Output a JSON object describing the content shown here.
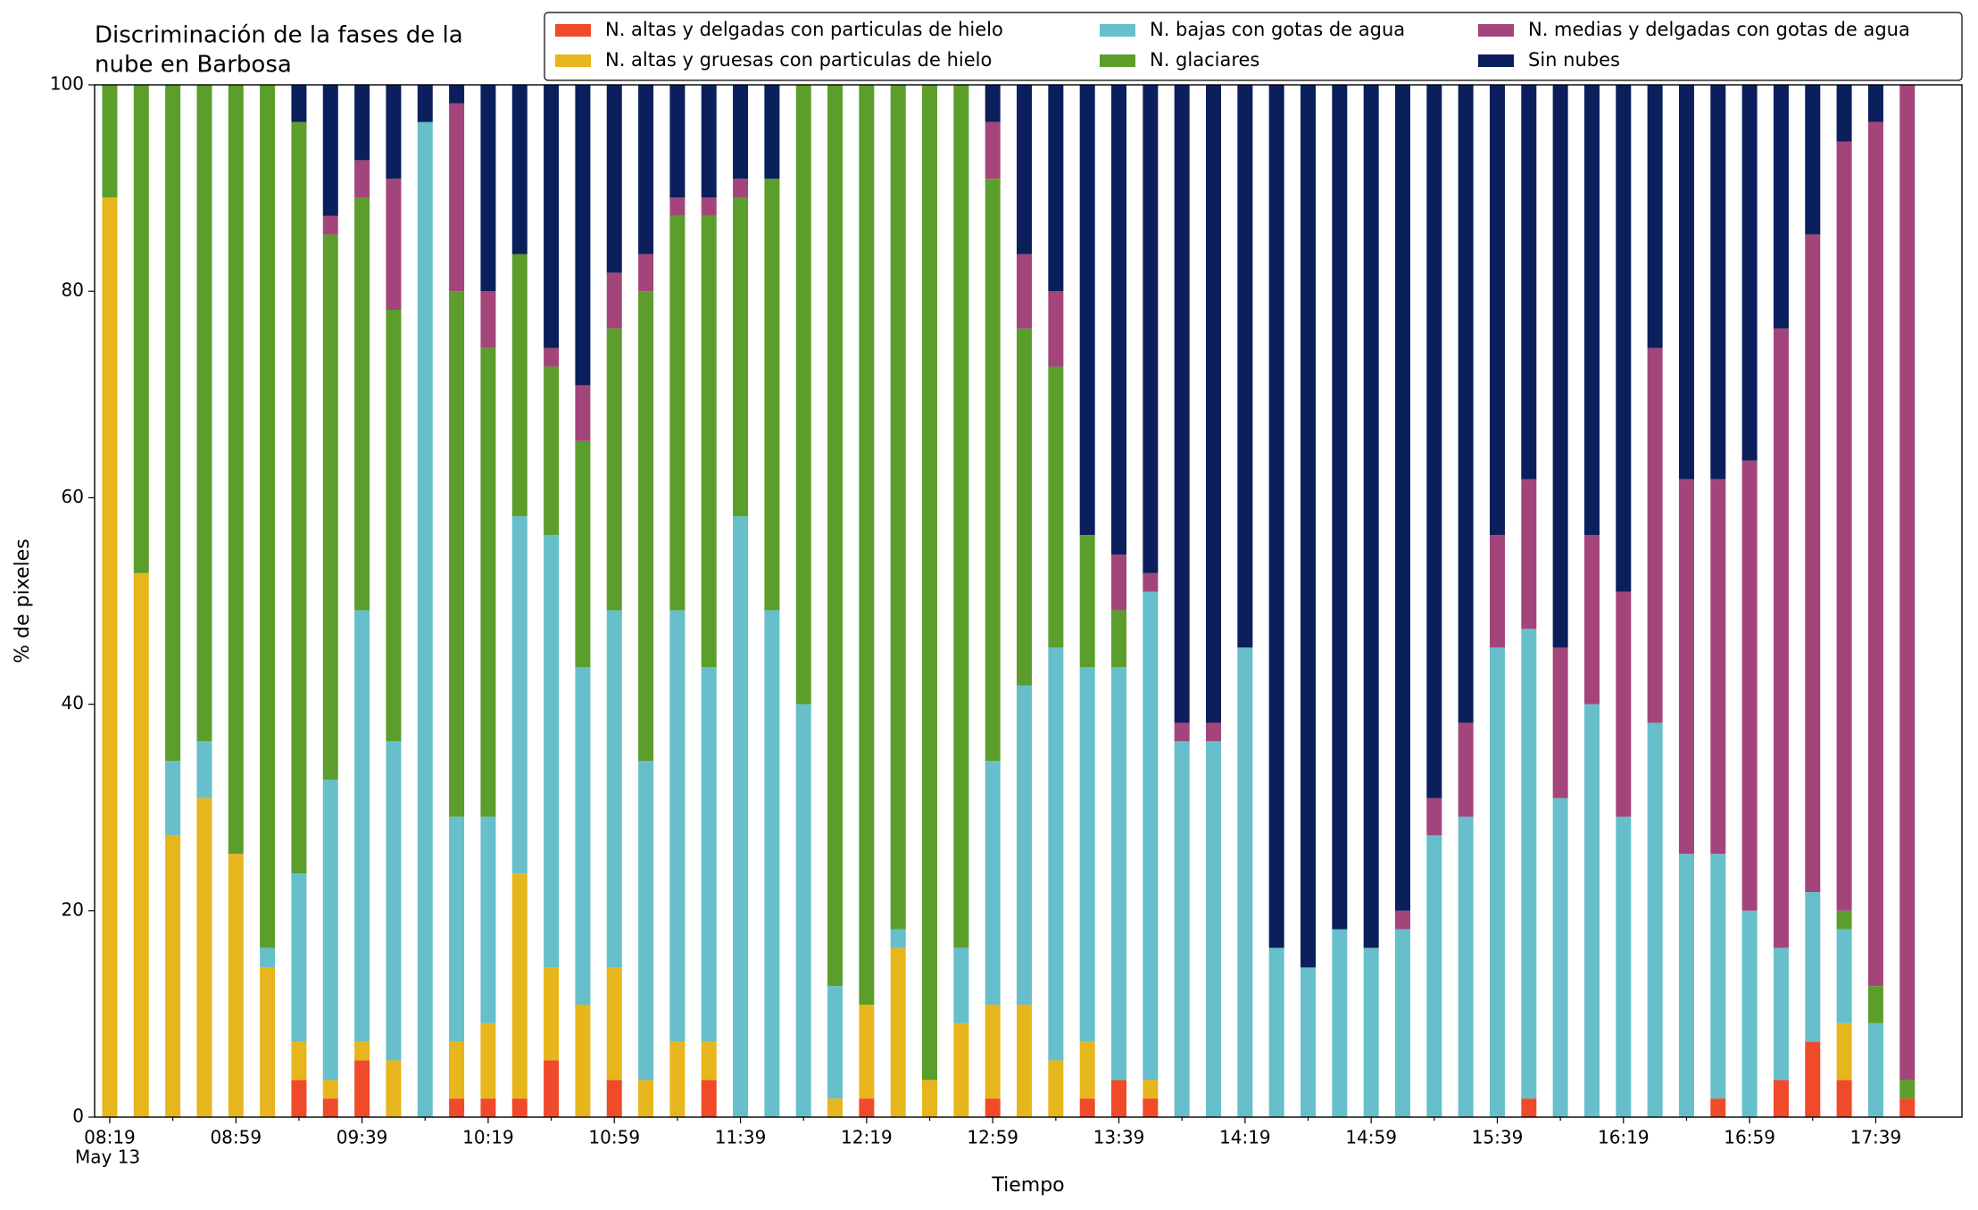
{
  "chart_data": {
    "type": "stacked_bar",
    "title": [
      "Discriminación de la fases de la",
      "nube en Barbosa"
    ],
    "x_label": "Tiempo",
    "x_sublabel": "May 13",
    "y_label": "% de pixeles",
    "categories": [
      "08:19",
      null,
      null,
      null,
      "08:59",
      null,
      null,
      null,
      "09:39",
      null,
      null,
      null,
      "10:19",
      null,
      null,
      null,
      "10:59",
      null,
      null,
      null,
      "11:39",
      null,
      null,
      null,
      "12:19",
      null,
      null,
      null,
      "12:59",
      null,
      null,
      null,
      "13:39",
      null,
      null,
      null,
      "14:19",
      null,
      null,
      null,
      "14:59",
      null,
      null,
      null,
      "15:39",
      null,
      null,
      null,
      "16:19",
      null,
      null,
      null,
      "16:59",
      null,
      null,
      null,
      "17:39",
      null
    ],
    "ylim": [
      0,
      100
    ],
    "yticks": [
      0,
      20,
      40,
      60,
      80,
      100
    ],
    "series": [
      {
        "name": "N. altas y delgadas con particulas de hielo",
        "color": "#f04a2a",
        "values": [
          0,
          0,
          0,
          0,
          0,
          0,
          3.6,
          1.8,
          5.5,
          0,
          0,
          1.8,
          1.8,
          1.8,
          5.5,
          0,
          3.6,
          0,
          0,
          3.6,
          0,
          0,
          0,
          0,
          1.8,
          0,
          0,
          0,
          1.8,
          0,
          0,
          1.8,
          3.6,
          1.8,
          0,
          0,
          0,
          0,
          0,
          0,
          0,
          0,
          0,
          0,
          0,
          1.8,
          0,
          0,
          0,
          0,
          0,
          1.8,
          0,
          3.6,
          7.3,
          3.6,
          0,
          1.8
        ]
      },
      {
        "name": "N. altas y gruesas con particulas de hielo",
        "color": "#e6b61c",
        "values": [
          89.1,
          52.7,
          27.3,
          30.9,
          25.5,
          14.5,
          3.7,
          1.8,
          1.8,
          5.5,
          0,
          5.5,
          7.3,
          21.8,
          9,
          10.9,
          10.9,
          3.6,
          7.3,
          3.7,
          0,
          0,
          0,
          1.8,
          9.1,
          16.4,
          3.6,
          9.1,
          9.1,
          10.9,
          5.5,
          5.5,
          0,
          1.8,
          0,
          0,
          0,
          0,
          0,
          0,
          0,
          0,
          0,
          0,
          0,
          0,
          0,
          0,
          0,
          0,
          0,
          0,
          0,
          0,
          0,
          5.5,
          0,
          0
        ]
      },
      {
        "name": "N. bajas con gotas de agua",
        "color": "#66bfcb",
        "values": [
          0,
          0,
          7.2,
          5.5,
          0,
          1.9,
          16.3,
          29.1,
          41.8,
          30.9,
          96.4,
          21.8,
          20,
          34.6,
          41.9,
          32.7,
          34.6,
          30.9,
          41.8,
          36.3,
          58.2,
          49.1,
          40,
          10.9,
          0,
          1.8,
          0,
          7.3,
          23.6,
          30.9,
          40,
          36.3,
          40,
          47.3,
          36.4,
          36.4,
          45.5,
          16.4,
          14.5,
          18.2,
          16.4,
          18.2,
          27.3,
          29.1,
          45.5,
          45.5,
          30.9,
          40,
          29.1,
          38.2,
          25.5,
          23.7,
          20,
          12.8,
          14.5,
          9.1,
          9.1,
          0
        ]
      },
      {
        "name": "N. glaciares",
        "color": "#5c9e2b",
        "values": [
          10.9,
          47.3,
          65.5,
          63.6,
          74.5,
          83.6,
          72.8,
          52.8,
          40,
          41.8,
          0,
          50.9,
          45.4,
          25.4,
          16.3,
          21.9,
          27.3,
          45.5,
          38.2,
          43.7,
          30.9,
          41.8,
          60,
          87.3,
          89.1,
          81.8,
          96.4,
          83.6,
          56.4,
          34.6,
          27.2,
          12.8,
          5.5,
          0,
          0,
          0,
          0,
          0,
          0,
          0,
          0,
          0,
          0,
          0,
          0,
          0,
          0,
          0,
          0,
          0,
          0,
          0,
          0,
          0,
          0,
          1.8,
          3.6,
          1.8
        ]
      },
      {
        "name": "N. medias y delgadas con gotas de agua",
        "color": "#a3457b",
        "values": [
          0,
          0,
          0,
          0,
          0,
          0,
          0,
          1.8,
          3.6,
          12.7,
          0,
          18.2,
          5.5,
          0,
          1.8,
          5.4,
          5.4,
          3.6,
          1.8,
          1.8,
          1.8,
          0,
          0,
          0,
          0,
          0,
          0,
          0,
          5.5,
          7.2,
          7.3,
          0,
          5.4,
          1.8,
          1.8,
          1.8,
          0,
          0,
          0,
          0,
          0,
          1.8,
          3.6,
          9.1,
          10.9,
          14.5,
          14.6,
          16.4,
          21.8,
          36.3,
          36.3,
          36.3,
          43.6,
          60,
          63.7,
          74.5,
          83.7,
          96.4
        ]
      },
      {
        "name": "Sin nubes",
        "color": "#0b1f5c",
        "values": [
          0,
          0,
          0,
          0,
          0,
          0,
          3.6,
          12.7,
          7.3,
          9.1,
          3.6,
          1.8,
          20,
          16.4,
          25.5,
          29.1,
          18.2,
          16.4,
          10.9,
          10.9,
          9.1,
          9.1,
          0,
          0,
          0,
          0,
          0,
          0,
          3.6,
          16.4,
          20,
          43.6,
          45.5,
          47.3,
          61.8,
          61.8,
          54.5,
          83.6,
          85.5,
          81.8,
          83.6,
          80,
          69.1,
          61.8,
          43.6,
          38.2,
          54.5,
          43.6,
          49.1,
          25.5,
          38.2,
          38.2,
          36.4,
          23.6,
          14.5,
          5.5,
          3.6,
          0
        ]
      }
    ]
  }
}
